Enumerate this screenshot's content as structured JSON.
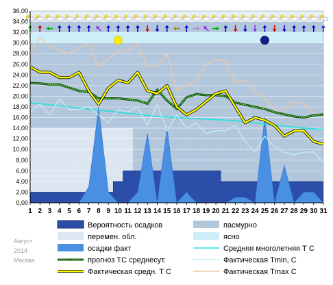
{
  "chart_data": {
    "type": "line",
    "watermark": [
      "Август",
      "2014",
      "Москва"
    ],
    "ylim": [
      0,
      36
    ],
    "yticks": [
      "0,00",
      "2,00",
      "4,00",
      "6,00",
      "8,00",
      "10,00",
      "12,00",
      "14,00",
      "16,00",
      "18,00",
      "20,00",
      "22,00",
      "24,00",
      "26,00",
      "28,00",
      "30,00",
      "32,00",
      "34,00",
      "36,00"
    ],
    "x": [
      1,
      2,
      3,
      4,
      5,
      6,
      7,
      8,
      9,
      10,
      11,
      12,
      13,
      14,
      15,
      16,
      17,
      18,
      19,
      20,
      21,
      22,
      23,
      24,
      25,
      26,
      27,
      28,
      29,
      30,
      31
    ],
    "sky": {
      "legend": [
        "пасмурно",
        "перемен. обл.",
        "ясно"
      ],
      "colors": [
        "#b3c7dc",
        "#dce6f0",
        "#cceef8"
      ],
      "days": [
        "перемен. обл.",
        "перемен. обл.",
        "перемен. обл.",
        "перемен. обл.",
        "перемен. обл.",
        "перемен. обл.",
        "перемен. обл.",
        "перемен. обл.",
        "перемен. обл.",
        "перемен. обл.",
        "перемен. обл.",
        "пасмурно",
        "пасмурно",
        "пасмурно",
        "пасмурно",
        "пасмурно",
        "пасмурно",
        "пасмурно",
        "пасмурно",
        "пасмурно",
        "пасмурно",
        "пасмурно",
        "пасмурно",
        "пасмурно",
        "пасмурно",
        "пасмурно",
        "пасмурно",
        "пасмурно",
        "пасмурно",
        "пасмурно",
        "пасмурно"
      ]
    },
    "series": [
      {
        "name": "Вероятность осадков",
        "kind": "step-area",
        "color": "#2b4ea8",
        "values": [
          2,
          2,
          2,
          2,
          2,
          2,
          2,
          2,
          2,
          4,
          6,
          6,
          6,
          6,
          6,
          6,
          6,
          6,
          6,
          6,
          4,
          4,
          4,
          4,
          4,
          4,
          4,
          4,
          4,
          4,
          4
        ]
      },
      {
        "name": "осадки факт",
        "kind": "area",
        "color": "#4a90e2",
        "values": [
          0,
          0,
          0,
          0,
          0,
          0,
          3,
          18,
          2,
          0,
          0,
          2,
          13,
          0,
          14,
          0,
          2,
          0,
          0,
          0,
          0,
          1,
          1,
          0,
          16,
          0,
          7,
          0,
          2,
          2,
          0
        ]
      },
      {
        "name": "Средняя многолетняя Т С",
        "kind": "line",
        "color": "#22e0e0",
        "values": [
          18.8,
          18.6,
          18.4,
          18.2,
          18.0,
          17.8,
          17.6,
          17.4,
          17.2,
          17.0,
          16.8,
          16.6,
          16.4,
          16.2,
          16.1,
          16.0,
          15.9,
          15.8,
          15.7,
          15.6,
          15.5,
          15.4,
          15.2,
          15.0,
          14.8,
          14.6,
          14.4,
          14.2,
          14.0,
          13.9,
          13.8
        ]
      },
      {
        "name": "прогноз ТС среднесут.",
        "kind": "dotted",
        "color": "#1e7a1e",
        "values": [
          22.5,
          22.4,
          22.2,
          22.2,
          21.6,
          21.0,
          20.8,
          19.6,
          19.6,
          19.6,
          19.4,
          19.2,
          18.6,
          21.2,
          19.2,
          17.6,
          19.8,
          20.4,
          20.2,
          20.2,
          20.0,
          18.8,
          18.4,
          18.0,
          17.6,
          17.0,
          16.6,
          16.2,
          16.0,
          16.4,
          16.6
        ]
      },
      {
        "name": "Фактическая Tmin, C",
        "kind": "line",
        "color": "#c4f0f8",
        "values": [
          17.0,
          18.5,
          16.5,
          19.5,
          17.5,
          17.5,
          18.0,
          16.5,
          15.0,
          17.5,
          17.0,
          18.0,
          14.5,
          18.5,
          13.5,
          16.5,
          14.0,
          15.0,
          13.0,
          13.5,
          13.5,
          14.5,
          11.5,
          9.5,
          12.5,
          10.5,
          9.5,
          9.0,
          9.5,
          9.5,
          7.5
        ]
      },
      {
        "name": "Фактическая Tmax C",
        "kind": "line",
        "color": "#f5c8a0",
        "values": [
          28.0,
          31.0,
          29.5,
          28.5,
          28.0,
          29.0,
          30.0,
          25.5,
          27.0,
          28.5,
          28.5,
          30.0,
          25.5,
          25.5,
          28.0,
          21.0,
          22.0,
          23.0,
          26.0,
          27.0,
          26.5,
          22.5,
          23.0,
          21.0,
          19.5,
          17.5,
          17.5,
          19.0,
          18.5,
          17.0,
          16.0
        ]
      },
      {
        "name": "Фактическая средн. Т С",
        "kind": "line",
        "color": "#ffff00",
        "values": [
          25.5,
          24.5,
          24.5,
          23.5,
          23.5,
          24.5,
          21.0,
          18.5,
          21.5,
          23.0,
          22.5,
          24.5,
          21.0,
          20.5,
          22.0,
          18.0,
          16.5,
          17.5,
          19.0,
          20.5,
          21.0,
          18.0,
          15.0,
          16.0,
          15.5,
          14.5,
          12.5,
          13.5,
          13.5,
          11.5,
          11.0
        ]
      }
    ],
    "weather_icons": [
      "cloud-sun-icon",
      "cloud-sun-icon",
      "cloud-sun-icon",
      "cloud-sun-icon",
      "cloud-sun-icon",
      "cloud-sun-icon",
      "cloud-sun-icon",
      "cloud-sun-icon",
      "cloud-sun-icon",
      "cloud-sun-icon",
      "cloud-sun-icon",
      "cloud-sun-icon",
      "cloud-sun-icon",
      "cloud-sun-icon",
      "cloud-sun-icon",
      "cloud-sun-icon",
      "cloud-sun-icon",
      "cloud-sun-icon",
      "cloud-sun-icon",
      "cloud-sun-icon",
      "cloud-sun-icon",
      "cloud-sun-icon",
      "cloud-sun-icon",
      "cloud-sun-icon",
      "cloud-sun-icon",
      "cloud-sun-icon",
      "cloud-sun-icon",
      "cloud-sun-icon",
      "cloud-sun-icon",
      "cloud-sun-icon",
      "cloud-sun-icon"
    ],
    "wind_arrows": [
      180,
      180,
      90,
      180,
      180,
      180,
      180,
      135,
      180,
      180,
      180,
      180,
      0,
      0,
      180,
      90,
      180,
      270,
      135,
      270,
      180,
      0,
      0,
      0,
      180,
      0,
      0,
      180,
      180,
      180,
      180
    ],
    "wind_colors": [
      "#00aa00",
      "#aa0000",
      "#00aa00",
      "#0000cc",
      "#0000cc",
      "#0000cc",
      "#0000cc",
      "#8a2be2",
      "#0000cc",
      "#0000cc",
      "#0000cc",
      "#0000cc",
      "#cc0000",
      "#0000cc",
      "#0000cc",
      "#aa8800",
      "#0000cc",
      "#c080c0",
      "#8a2be2",
      "#00aa00",
      "#0000cc",
      "#cc0000",
      "#0000cc",
      "#8a2be2",
      "#0000cc",
      "#cc0000",
      "#0000cc",
      "#0000cc",
      "#0000cc",
      "#0000cc",
      "#0000cc"
    ],
    "sun_moon": [
      {
        "icon": "sun-icon",
        "day": 10,
        "value": 30.5,
        "color": "#ffee00"
      },
      {
        "icon": "moon-icon",
        "day": 25,
        "value": 30.5,
        "color": "#1a1a8c"
      }
    ],
    "legend": [
      {
        "label": "Вероятность осадков",
        "swatch": "box",
        "color": "#2b4ea8"
      },
      {
        "label": "пасмурно",
        "swatch": "box",
        "color": "#b3c7dc"
      },
      {
        "label": "перемен. обл.",
        "swatch": "box",
        "color": "#dce6f0"
      },
      {
        "label": "ясно",
        "swatch": "box",
        "color": "#cceef8"
      },
      {
        "label": "осадки факт",
        "swatch": "box",
        "color": "#4a90e2"
      },
      {
        "label": "Средняя многолетняя Т С",
        "swatch": "line",
        "color": "#22e0e0"
      },
      {
        "label": "прогноз ТС среднесут.",
        "swatch": "dotted",
        "color": "#1e7a1e"
      },
      {
        "label": "Фактическая Tmin, C",
        "swatch": "line",
        "color": "#c4f0f8"
      },
      {
        "label": "Фактическая средн. Т С",
        "swatch": "line",
        "color": "#ffff00"
      },
      {
        "label": "Фактическая Tmax C",
        "swatch": "line",
        "color": "#f5c8a0"
      }
    ]
  }
}
